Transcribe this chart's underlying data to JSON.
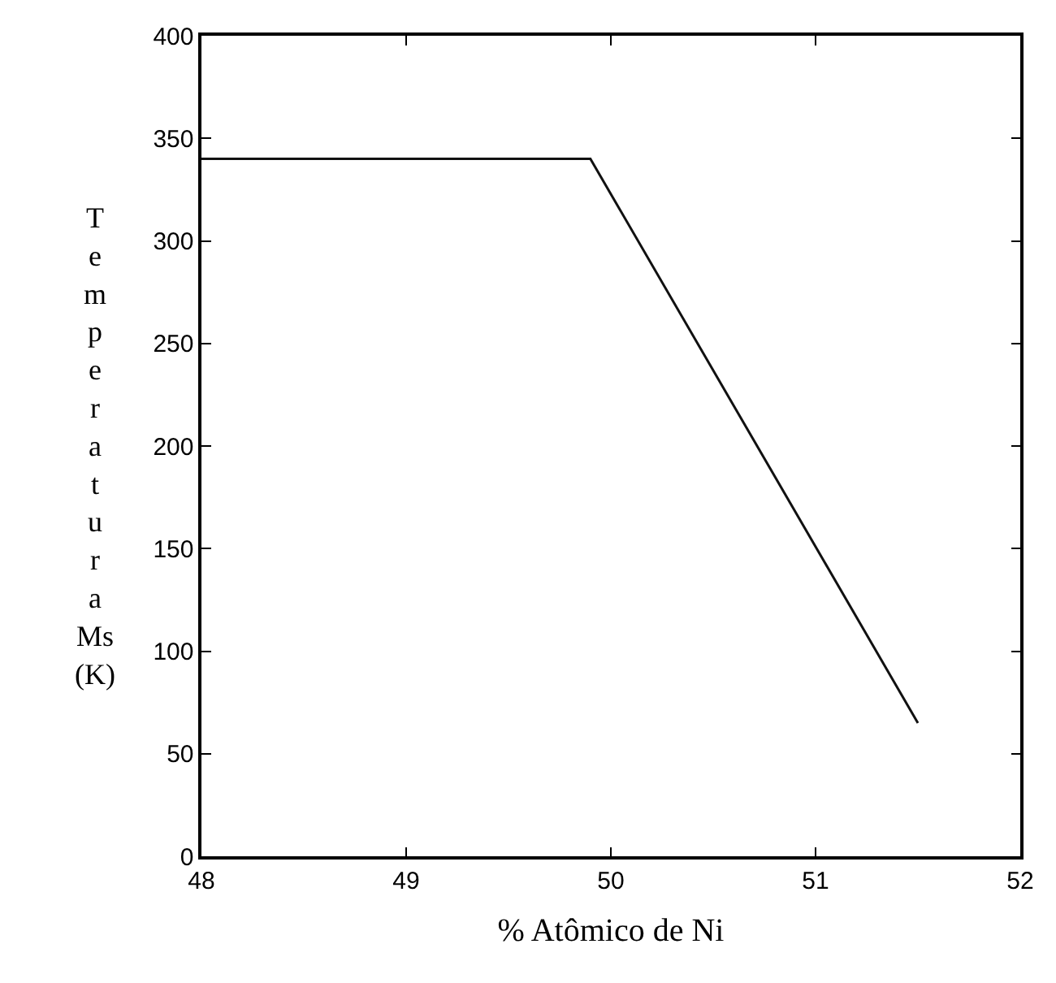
{
  "chart_data": {
    "type": "line",
    "xlabel": "% Atômico de Ni",
    "ylabel": "Temperatura Ms (K)",
    "x": [
      48,
      49.9,
      51.5
    ],
    "series": [
      {
        "color": "#111111",
        "values": [
          340,
          340,
          65
        ]
      }
    ],
    "xlim": [
      48,
      52
    ],
    "xticks": [
      48,
      49,
      50,
      51,
      52
    ],
    "ylim": [
      0,
      400
    ],
    "yticks": [
      0,
      50,
      100,
      150,
      200,
      250,
      300,
      350,
      400
    ],
    "marker": "none",
    "line_style": "solid"
  }
}
